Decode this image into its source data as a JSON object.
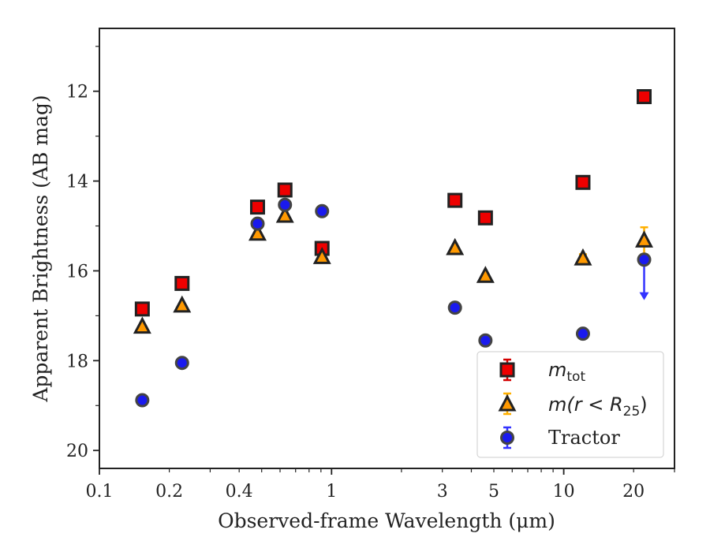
{
  "colors": {
    "mtot_fill": "#ee0000",
    "mtot_err": "#d40000",
    "mr25_fill": "#ff9900",
    "mr25_err": "#ffb000",
    "tractor_fill": "#1a1aee",
    "tractor_err": "#3333ff",
    "edge": "#222222",
    "axes": "#222222"
  },
  "chart_data": {
    "type": "scatter",
    "title": "",
    "xlabel": "Observed-frame Wavelength (μm)",
    "ylabel": "Apparent Brightness (AB mag)",
    "xscale": "log",
    "xlim": [
      0.1,
      30
    ],
    "ylim": [
      20.4,
      10.6
    ],
    "y_inverted": true,
    "grid": false,
    "x_ticks": [
      0.1,
      0.2,
      0.4,
      1,
      3,
      5,
      10,
      20
    ],
    "x_tick_labels": [
      "0.1",
      "0.2",
      "0.4",
      "1",
      "3",
      "5",
      "10",
      "20"
    ],
    "y_ticks": [
      12,
      14,
      16,
      18,
      20
    ],
    "y_tick_labels": [
      "12",
      "14",
      "16",
      "18",
      "20"
    ],
    "legend_position": "lower-right",
    "series": [
      {
        "name": "m_tot",
        "legend_base": "m",
        "legend_sub": "tot",
        "marker": "square",
        "x": [
          0.153,
          0.227,
          0.48,
          0.63,
          0.91,
          3.4,
          4.6,
          12.1,
          22.2
        ],
        "y": [
          16.85,
          16.28,
          14.58,
          14.2,
          15.5,
          14.43,
          14.82,
          14.03,
          12.12
        ]
      },
      {
        "name": "m(r < R_25)",
        "legend_base": "m(r < R",
        "legend_sub": "25",
        "legend_close": ")",
        "marker": "triangle",
        "x": [
          0.153,
          0.227,
          0.48,
          0.63,
          0.91,
          3.4,
          4.6,
          12.1,
          22.2
        ],
        "y": [
          17.25,
          16.78,
          15.18,
          14.78,
          15.7,
          15.5,
          16.12,
          15.73,
          15.33
        ],
        "yerr": [
          0,
          0,
          0,
          0,
          0,
          0,
          0,
          0.1,
          0.3
        ]
      },
      {
        "name": "Tractor",
        "marker": "circle",
        "x": [
          0.153,
          0.227,
          0.48,
          0.63,
          0.91,
          3.4,
          4.6,
          12.1,
          22.2
        ],
        "y": [
          18.88,
          18.05,
          14.95,
          14.53,
          14.67,
          16.82,
          17.55,
          17.4,
          15.75
        ],
        "upper_limit": [
          false,
          false,
          false,
          false,
          false,
          false,
          false,
          false,
          true
        ],
        "upper_limit_extent": 0.85
      }
    ]
  }
}
